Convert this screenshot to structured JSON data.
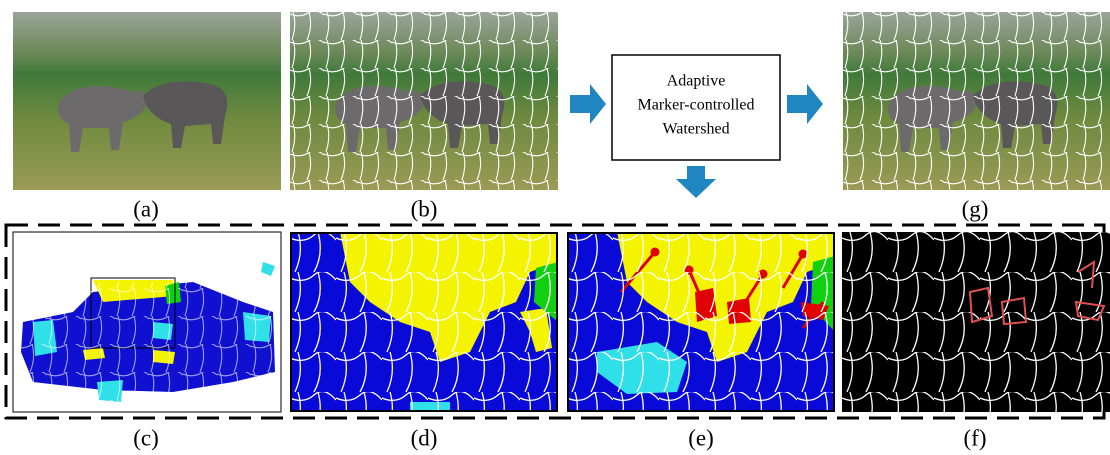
{
  "panels": [
    {
      "label": "(a)"
    },
    {
      "label": "(b)"
    },
    {
      "label": "(g)"
    },
    {
      "label": "(c)"
    },
    {
      "label": "(d)"
    },
    {
      "label": "(e)"
    },
    {
      "label": "(f)"
    }
  ],
  "process_box": {
    "lines": [
      "Adaptive",
      "Marker-controlled",
      "Watershed"
    ]
  }
}
